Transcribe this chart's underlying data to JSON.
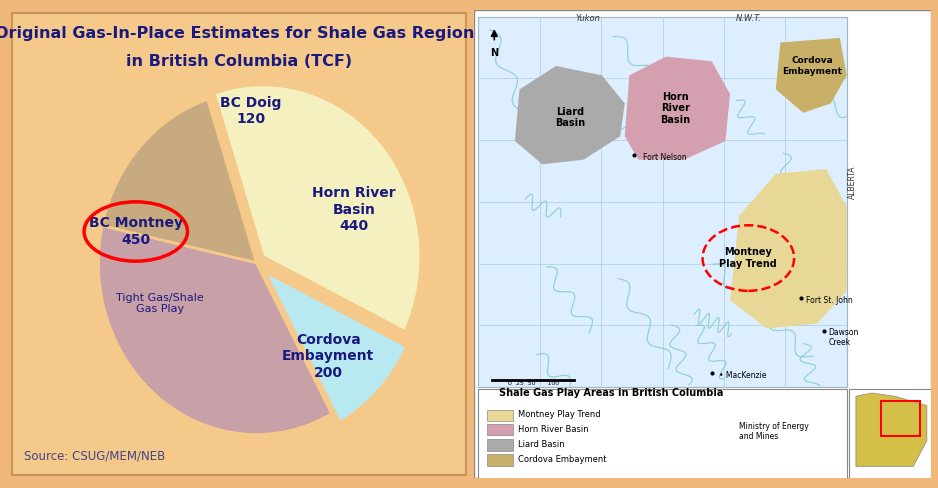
{
  "title_line1": "Original Gas-In-Place Estimates for Shale Gas Regions",
  "title_line2": "in British Columbia (TCF)",
  "title_fontsize": 11.5,
  "title_color": "#1a1a7e",
  "background_color": "#f0b87a",
  "panel_bg": "#f5c98a",
  "border_color": "#c8955a",
  "slices": [
    {
      "label": "BC Montney",
      "value": 450,
      "color": "#f5f0c0"
    },
    {
      "label": "BC Doig",
      "value": 120,
      "color": "#b8e8f0"
    },
    {
      "label": "Horn River\nBasin",
      "value": 440,
      "color": "#c8a0a8"
    },
    {
      "label": "Cordova\nEmbayment",
      "value": 200,
      "color": "#c8aa80"
    }
  ],
  "source_text": "Source: CSUG/MEM/NEB",
  "source_fontsize": 8.5,
  "source_color": "#444488",
  "label_color": "#1a1a7e",
  "label_fontsize": 10,
  "sublabel_fontsize": 8,
  "ellipse_color": "red",
  "startangle": 108,
  "map_bg": "#ffffff",
  "map_area_bg": "#ddeeff",
  "liard_color": "#aaaaaa",
  "horn_color": "#d4a0b0",
  "cordova_color": "#c8b068",
  "montney_color": "#e8d898",
  "river_color": "#88cccc",
  "grid_color": "#aaccdd"
}
